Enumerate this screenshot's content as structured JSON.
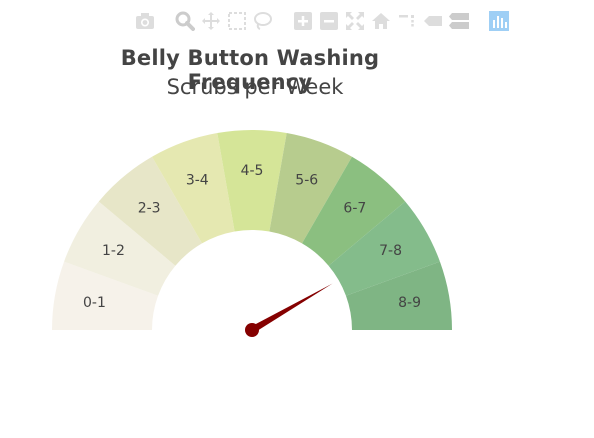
{
  "modebar": {
    "buttons": [
      {
        "name": "camera-icon",
        "color": "#dddddd"
      },
      {
        "name": "zoom-icon",
        "color": "#dddddd"
      },
      {
        "name": "pan-icon",
        "color": "#dddddd"
      },
      {
        "name": "box-select-icon",
        "color": "#dddddd"
      },
      {
        "name": "lasso-select-icon",
        "color": "#dddddd"
      },
      {
        "name": "zoom-in-icon",
        "color": "#dddddd"
      },
      {
        "name": "zoom-out-icon",
        "color": "#dddddd"
      },
      {
        "name": "autoscale-icon",
        "color": "#dddddd"
      },
      {
        "name": "home-icon",
        "color": "#dddddd"
      },
      {
        "name": "spike-lines-icon",
        "color": "#dddddd"
      },
      {
        "name": "hover-closest-icon",
        "color": "#dddddd"
      },
      {
        "name": "hover-compare-icon",
        "color": "#dddddd"
      },
      {
        "name": "plotly-logo-icon",
        "color": "#9fcff5"
      }
    ]
  },
  "chart_data": {
    "type": "gauge",
    "title": "Belly Button Washing Frequency",
    "subtitle": "Scrubs per Week",
    "segments": [
      "0-1",
      "1-2",
      "2-3",
      "3-4",
      "4-5",
      "5-6",
      "6-7",
      "7-8",
      "8-9"
    ],
    "segment_colors": [
      "#f6f2ea",
      "#f1efe0",
      "#e7e6c8",
      "#e5e8b1",
      "#d5e598",
      "#b7cc8e",
      "#8bbf80",
      "#84bc8b",
      "#7fb584"
    ],
    "range": [
      0,
      9
    ],
    "value": 7.5,
    "needle_color": "#850000"
  }
}
